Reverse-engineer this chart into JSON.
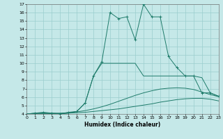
{
  "xlabel": "Humidex (Indice chaleur)",
  "xlim": [
    0,
    23
  ],
  "ylim": [
    4,
    17
  ],
  "xticks": [
    0,
    1,
    2,
    3,
    4,
    5,
    6,
    7,
    8,
    9,
    10,
    11,
    12,
    13,
    14,
    15,
    16,
    17,
    18,
    19,
    20,
    21,
    22,
    23
  ],
  "yticks": [
    4,
    5,
    6,
    7,
    8,
    9,
    10,
    11,
    12,
    13,
    14,
    15,
    16,
    17
  ],
  "line_color": "#1e7b6a",
  "bg_color": "#c5e8e8",
  "grid_color": "#9acece",
  "lines": [
    {
      "x": [
        0,
        1,
        2,
        3,
        4,
        5,
        6,
        7,
        8,
        9,
        10,
        11,
        12,
        13,
        14,
        15,
        16,
        17,
        18,
        19,
        20,
        21,
        22,
        23
      ],
      "y": [
        4,
        4.05,
        4.05,
        4.05,
        4.05,
        4.1,
        4.15,
        4.2,
        4.3,
        4.4,
        4.5,
        4.6,
        4.75,
        4.9,
        5.05,
        5.2,
        5.4,
        5.55,
        5.7,
        5.8,
        5.85,
        5.85,
        5.75,
        5.55
      ],
      "marker": false
    },
    {
      "x": [
        0,
        1,
        2,
        3,
        4,
        5,
        6,
        7,
        8,
        9,
        10,
        11,
        12,
        13,
        14,
        15,
        16,
        17,
        18,
        19,
        20,
        21,
        22,
        23
      ],
      "y": [
        4,
        4.1,
        4.1,
        4.1,
        4.1,
        4.15,
        4.25,
        4.4,
        4.6,
        4.85,
        5.15,
        5.5,
        5.85,
        6.2,
        6.5,
        6.75,
        6.95,
        7.05,
        7.1,
        7.05,
        6.9,
        6.6,
        6.3,
        6.05
      ],
      "marker": false
    },
    {
      "x": [
        0,
        1,
        2,
        3,
        4,
        5,
        6,
        7,
        8,
        9,
        10,
        11,
        12,
        13,
        14,
        15,
        16,
        17,
        18,
        19,
        20,
        21,
        22,
        23
      ],
      "y": [
        4,
        4.1,
        4.1,
        4.0,
        4.0,
        4.1,
        4.3,
        5.3,
        8.5,
        10.0,
        10.0,
        10.0,
        10.0,
        10.0,
        8.5,
        8.5,
        8.5,
        8.5,
        8.5,
        8.5,
        8.5,
        8.3,
        6.5,
        6.1
      ],
      "marker": false
    },
    {
      "x": [
        1,
        2,
        3,
        4,
        5,
        6,
        7,
        8,
        9,
        10,
        11,
        12,
        13,
        14,
        15,
        16,
        17,
        18,
        19,
        20,
        21,
        22,
        23
      ],
      "y": [
        4.1,
        4.2,
        4.1,
        4.0,
        4.2,
        4.3,
        5.3,
        8.5,
        10.2,
        16.0,
        15.3,
        15.5,
        12.8,
        17.0,
        15.5,
        15.5,
        10.8,
        9.5,
        8.5,
        8.5,
        6.5,
        6.5,
        6.1
      ],
      "marker": true
    }
  ]
}
